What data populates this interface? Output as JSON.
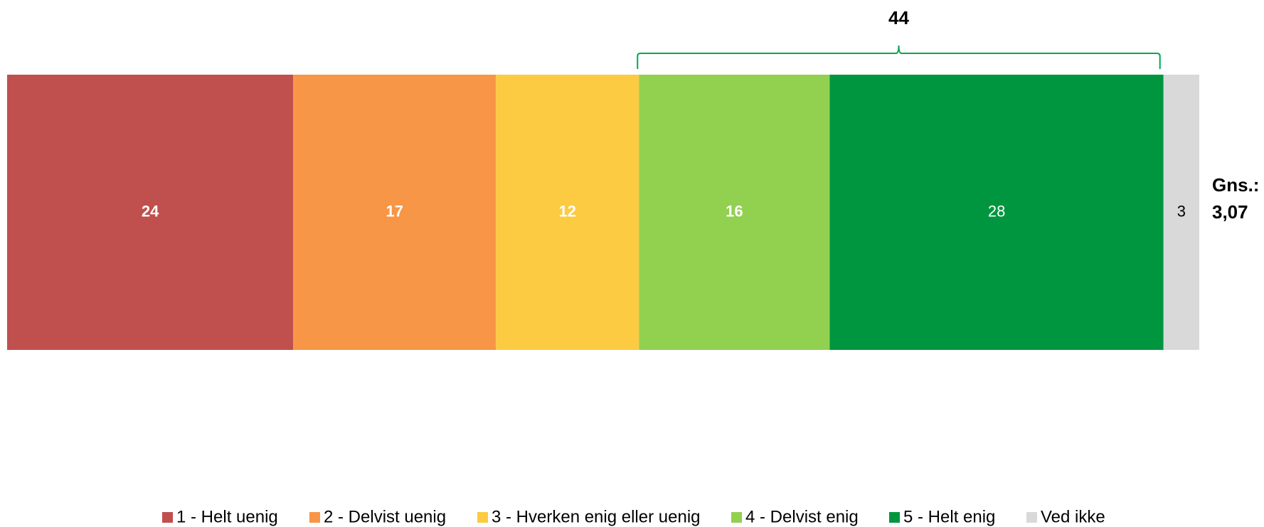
{
  "chart_data": {
    "type": "bar",
    "orientation": "horizontal",
    "stacked": true,
    "series": [
      {
        "name": "1 - Helt uenig",
        "value": 24,
        "color": "#C0504D",
        "label_color": "#ffffff",
        "label_bold": true
      },
      {
        "name": "2 - Delvist uenig",
        "value": 17,
        "color": "#F79646",
        "label_color": "#ffffff",
        "label_bold": true
      },
      {
        "name": "3 - Hverken enig eller uenig",
        "value": 12,
        "color": "#FCCB41",
        "label_color": "#ffffff",
        "label_bold": true
      },
      {
        "name": "4 - Delvist enig",
        "value": 16,
        "color": "#92D050",
        "label_color": "#ffffff",
        "label_bold": true
      },
      {
        "name": "5 - Helt enig",
        "value": 28,
        "color": "#00963F",
        "label_color": "#ffffff",
        "label_bold": false
      },
      {
        "name": "Ved ikke",
        "value": 3,
        "color": "#D9D9D9",
        "label_color": "#000000",
        "label_bold": false
      }
    ],
    "bracket": {
      "label": "44",
      "from_series": 3,
      "to_series": 4,
      "color": "#00A651"
    },
    "average": {
      "label": "Gns.:",
      "value": "3,07"
    },
    "legend_position": "bottom",
    "grid": false
  }
}
